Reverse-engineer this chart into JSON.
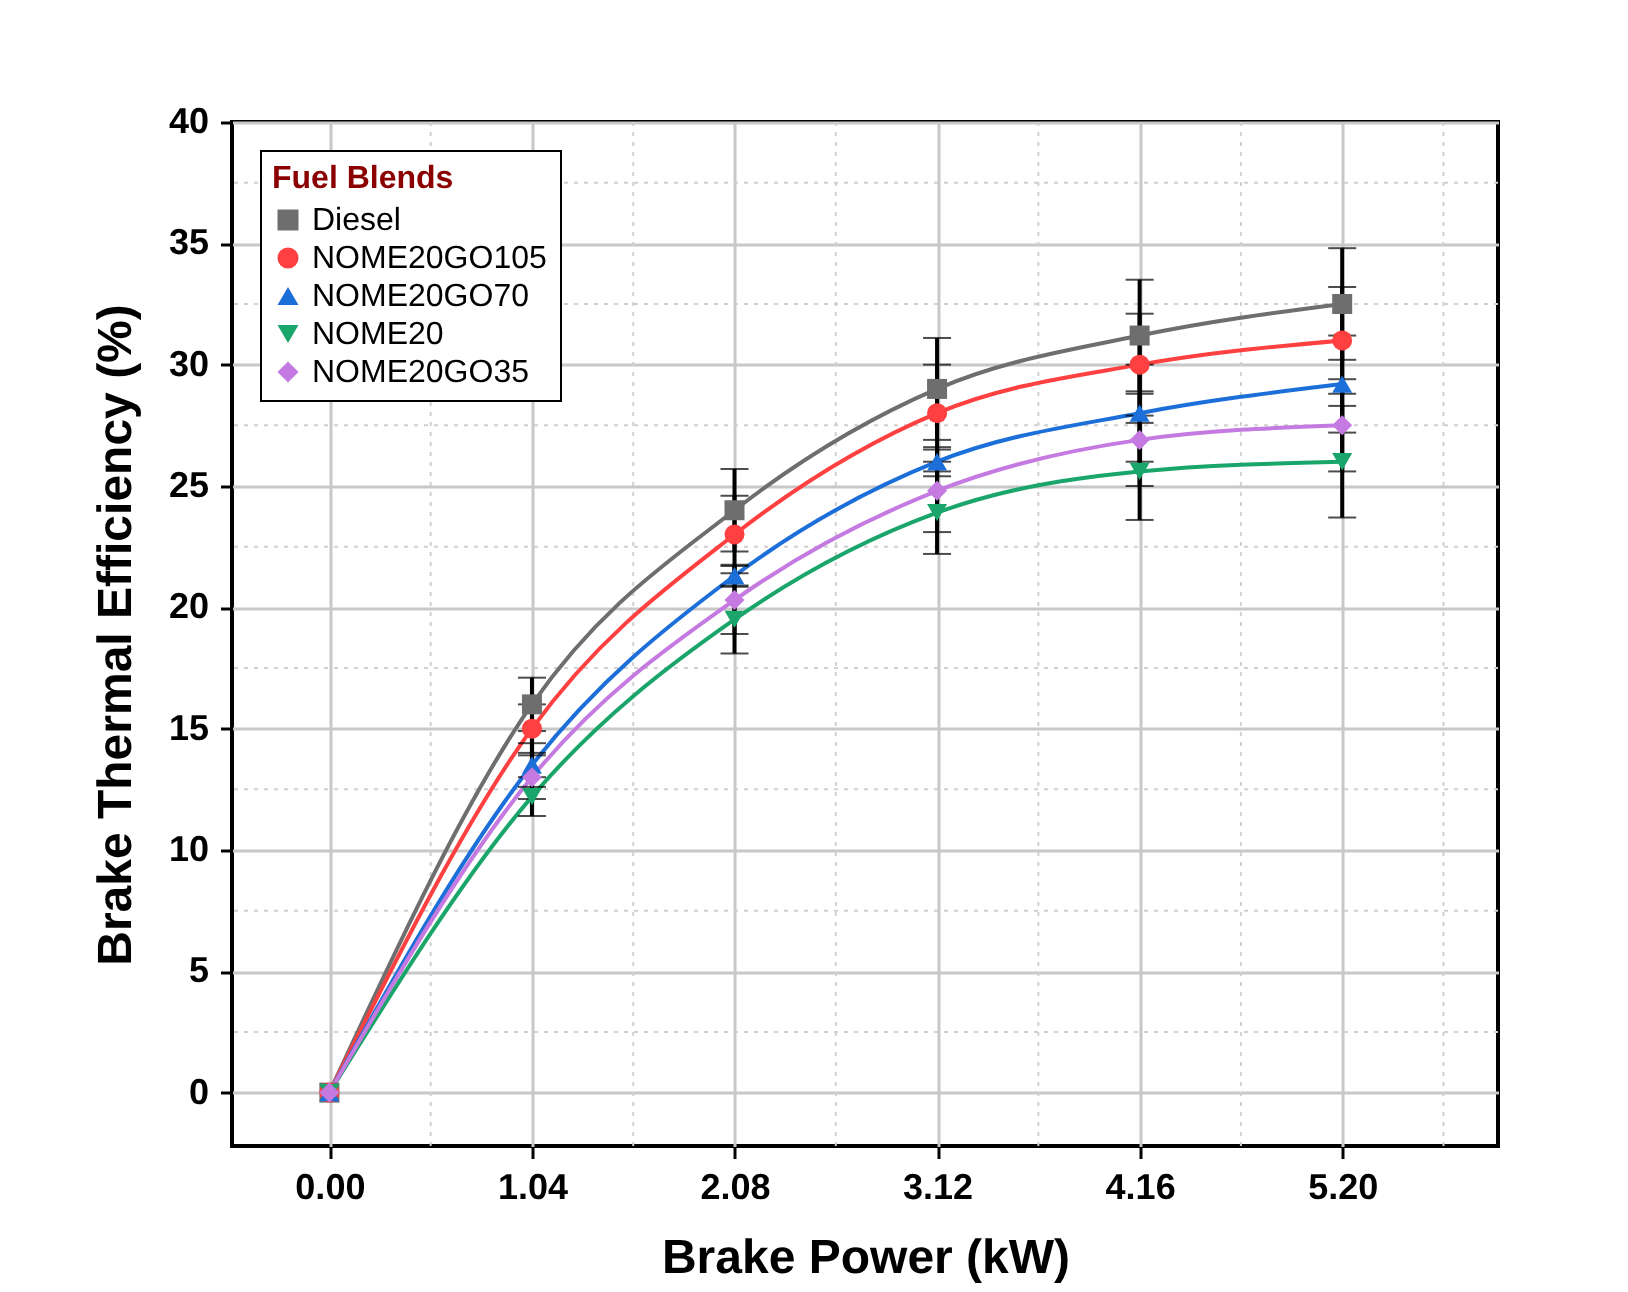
{
  "chart_data": {
    "type": "line",
    "xlabel": "Brake Power (kW)",
    "ylabel": "Brake Thermal Efficiency (%)",
    "legend_title": "Fuel Blends",
    "x": [
      0,
      1.04,
      2.08,
      3.12,
      4.16,
      5.2
    ],
    "xlim": [
      -0.5,
      6.0
    ],
    "xticks": [
      {
        "value": 0,
        "label": "0.00"
      },
      {
        "value": 1.04,
        "label": "1.04"
      },
      {
        "value": 2.08,
        "label": "2.08"
      },
      {
        "value": 3.12,
        "label": "3.12"
      },
      {
        "value": 4.16,
        "label": "4.16"
      },
      {
        "value": 5.2,
        "label": "5.20"
      }
    ],
    "ylim": [
      -2.2,
      40
    ],
    "yticks": [
      0,
      5,
      10,
      15,
      20,
      25,
      30,
      35,
      40
    ],
    "grid": true,
    "legend": "top left",
    "line_style": "solid",
    "series": [
      {
        "name": "Diesel",
        "color": "#6e6e6e",
        "marker": "square",
        "values": [
          0,
          16,
          24,
          29,
          31.2,
          32.5
        ],
        "errors": [
          null,
          1.1,
          1.7,
          2.1,
          2.3,
          2.3
        ]
      },
      {
        "name": "NOME20GO105",
        "color": "#ff4040",
        "marker": "circle",
        "values": [
          0,
          15,
          23,
          28,
          30,
          31
        ],
        "errors": [
          null,
          1.0,
          1.6,
          2.0,
          2.1,
          2.2
        ]
      },
      {
        "name": "NOME20GO70",
        "color": "#1c6fd8",
        "marker": "triangle",
        "values": [
          0,
          13.5,
          21.3,
          26,
          28,
          29.2
        ],
        "errors": [
          null,
          0.9,
          0.45,
          0.6,
          2.0,
          2.0
        ]
      },
      {
        "name": "NOME20",
        "color": "#1aa56a",
        "marker": "triangle-down",
        "values": [
          0,
          12.2,
          19.5,
          23.9,
          25.6,
          26
        ],
        "errors": [
          null,
          0.8,
          1.4,
          1.7,
          2.0,
          2.3
        ]
      },
      {
        "name": "NOME20GO35",
        "color": "#c47ae0",
        "marker": "diamond",
        "values": [
          0,
          13,
          20.3,
          24.8,
          26.9,
          27.5
        ],
        "errors": [
          null,
          0.9,
          1.4,
          1.7,
          1.9,
          1.9
        ]
      }
    ]
  }
}
